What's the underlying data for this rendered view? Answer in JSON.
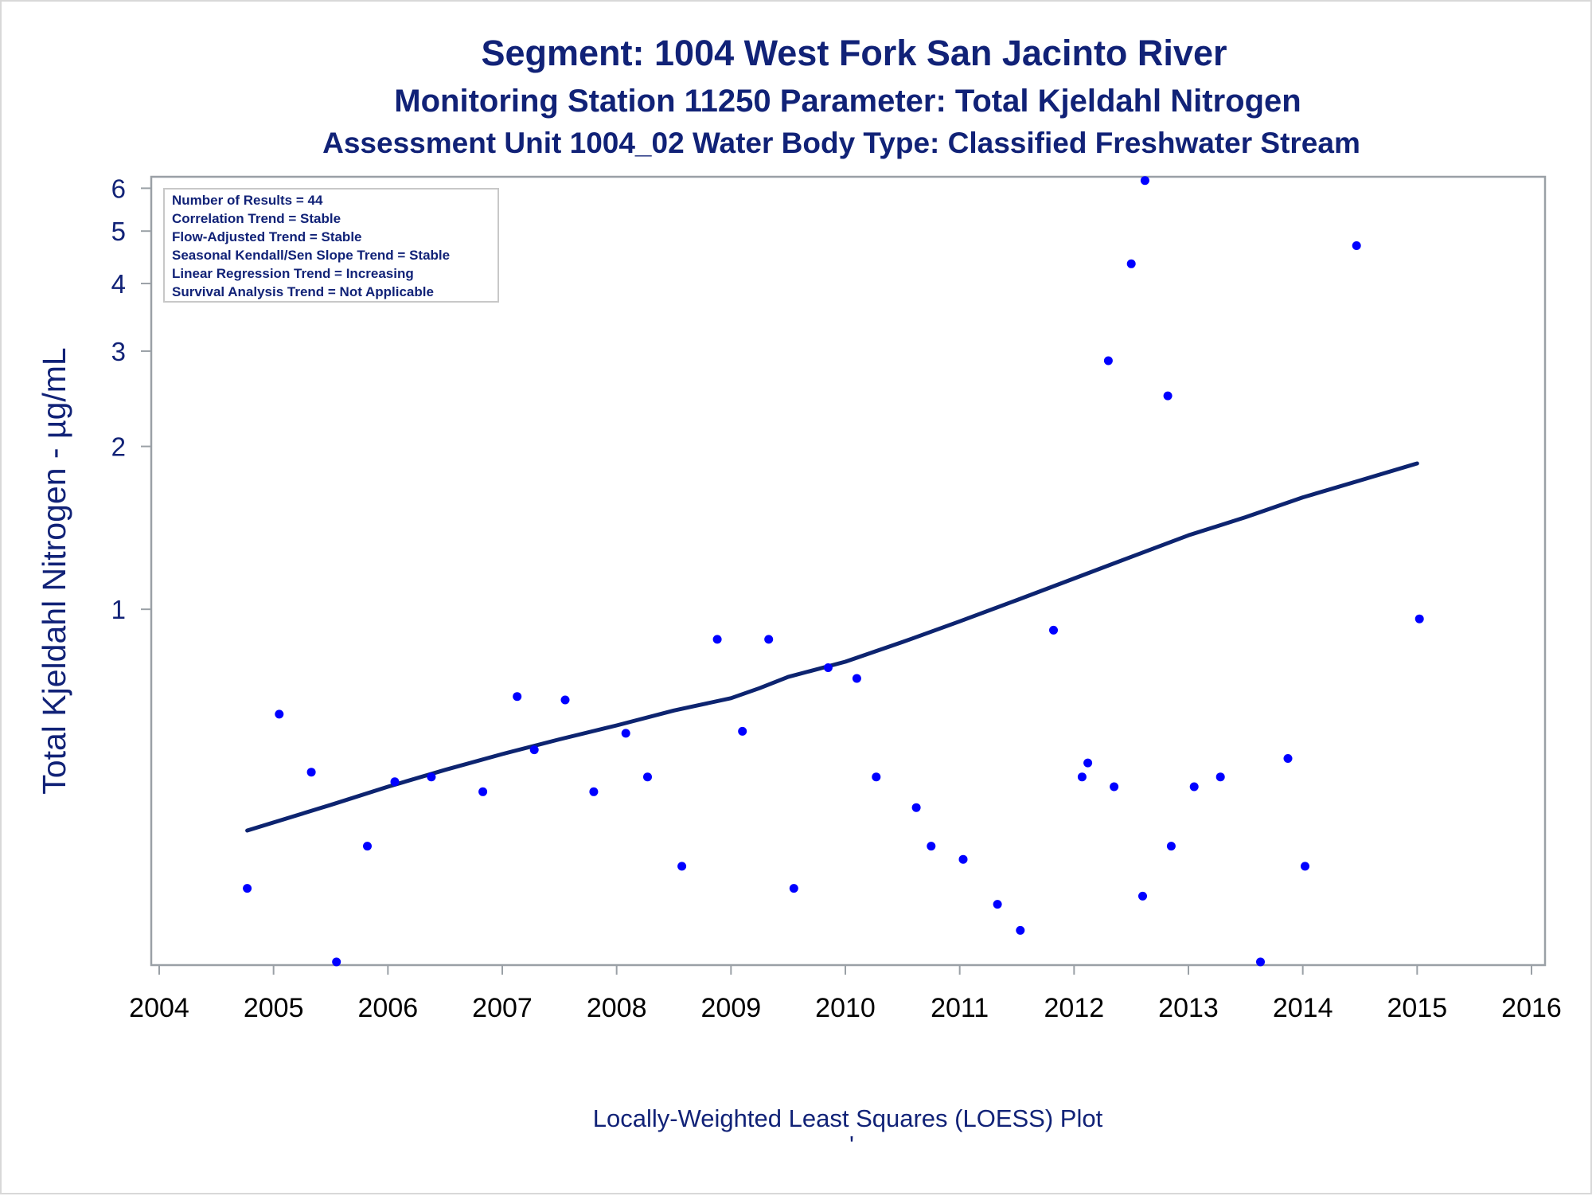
{
  "titles": {
    "line1": "Segment: 1004  West Fork San Jacinto River",
    "line2": "Monitoring Station 11250 Parameter: Total Kjeldahl Nitrogen",
    "line3": "Assessment Unit 1004_02   Water Body Type: Classified Freshwater Stream"
  },
  "footnote": "Locally-Weighted Least Squares (LOESS) Plot",
  "footnote_mark": "'",
  "stats_box": [
    "Number of Results = 44",
    "Correlation Trend = Stable",
    "Flow-Adjusted Trend = Stable",
    "Seasonal Kendall/Sen Slope Trend = Stable",
    "Linear Regression Trend = Increasing",
    "Survival Analysis Trend = Not Applicable"
  ],
  "colors": {
    "title": "#112277",
    "points": "#0000ff",
    "loess": "#0d2470",
    "axis": "#9aa0a6"
  },
  "chart_data": {
    "type": "scatter",
    "ylabel": "Total Kjeldahl Nitrogen -  µg/mL",
    "xlabel": "",
    "y_scale": "log",
    "xlim": [
      2004,
      2016
    ],
    "ylim": [
      0.22,
      6.3
    ],
    "x_ticks": [
      2004,
      2005,
      2006,
      2007,
      2008,
      2009,
      2010,
      2011,
      2012,
      2013,
      2014,
      2015,
      2016
    ],
    "y_ticks": [
      1,
      2,
      3,
      4,
      5,
      6
    ],
    "grid": false,
    "series": [
      {
        "type": "scatter",
        "points": [
          {
            "x": 2004.77,
            "y": 0.305
          },
          {
            "x": 2005.05,
            "y": 0.64
          },
          {
            "x": 2005.33,
            "y": 0.5
          },
          {
            "x": 2005.55,
            "y": 0.223
          },
          {
            "x": 2005.82,
            "y": 0.365
          },
          {
            "x": 2006.06,
            "y": 0.48
          },
          {
            "x": 2006.38,
            "y": 0.49
          },
          {
            "x": 2006.83,
            "y": 0.46
          },
          {
            "x": 2007.13,
            "y": 0.69
          },
          {
            "x": 2007.28,
            "y": 0.55
          },
          {
            "x": 2007.55,
            "y": 0.68
          },
          {
            "x": 2007.8,
            "y": 0.46
          },
          {
            "x": 2008.08,
            "y": 0.59
          },
          {
            "x": 2008.27,
            "y": 0.49
          },
          {
            "x": 2008.57,
            "y": 0.335
          },
          {
            "x": 2008.88,
            "y": 0.88
          },
          {
            "x": 2009.1,
            "y": 0.595
          },
          {
            "x": 2009.33,
            "y": 0.88
          },
          {
            "x": 2009.55,
            "y": 0.305
          },
          {
            "x": 2009.85,
            "y": 0.78
          },
          {
            "x": 2010.1,
            "y": 0.745
          },
          {
            "x": 2010.27,
            "y": 0.49
          },
          {
            "x": 2010.62,
            "y": 0.43
          },
          {
            "x": 2010.75,
            "y": 0.365
          },
          {
            "x": 2011.03,
            "y": 0.345
          },
          {
            "x": 2011.33,
            "y": 0.285
          },
          {
            "x": 2011.53,
            "y": 0.255
          },
          {
            "x": 2011.82,
            "y": 0.915
          },
          {
            "x": 2012.07,
            "y": 0.49
          },
          {
            "x": 2012.12,
            "y": 0.52
          },
          {
            "x": 2012.3,
            "y": 2.88
          },
          {
            "x": 2012.35,
            "y": 0.47
          },
          {
            "x": 2012.5,
            "y": 4.35
          },
          {
            "x": 2012.6,
            "y": 0.295
          },
          {
            "x": 2012.62,
            "y": 6.2
          },
          {
            "x": 2012.82,
            "y": 2.48
          },
          {
            "x": 2012.85,
            "y": 0.365
          },
          {
            "x": 2013.05,
            "y": 0.47
          },
          {
            "x": 2013.28,
            "y": 0.49
          },
          {
            "x": 2013.63,
            "y": 0.223
          },
          {
            "x": 2013.87,
            "y": 0.53
          },
          {
            "x": 2014.02,
            "y": 0.335
          },
          {
            "x": 2014.47,
            "y": 4.7
          },
          {
            "x": 2015.02,
            "y": 0.96
          }
        ]
      },
      {
        "type": "line",
        "points": [
          {
            "x": 2004.77,
            "y": 0.39
          },
          {
            "x": 2005.5,
            "y": 0.435
          },
          {
            "x": 2006.0,
            "y": 0.47
          },
          {
            "x": 2006.5,
            "y": 0.505
          },
          {
            "x": 2007.0,
            "y": 0.54
          },
          {
            "x": 2007.5,
            "y": 0.575
          },
          {
            "x": 2008.0,
            "y": 0.61
          },
          {
            "x": 2008.5,
            "y": 0.65
          },
          {
            "x": 2009.0,
            "y": 0.685
          },
          {
            "x": 2009.25,
            "y": 0.715
          },
          {
            "x": 2009.5,
            "y": 0.75
          },
          {
            "x": 2010.0,
            "y": 0.8
          },
          {
            "x": 2010.5,
            "y": 0.87
          },
          {
            "x": 2011.0,
            "y": 0.95
          },
          {
            "x": 2011.5,
            "y": 1.04
          },
          {
            "x": 2012.0,
            "y": 1.14
          },
          {
            "x": 2012.5,
            "y": 1.25
          },
          {
            "x": 2013.0,
            "y": 1.37
          },
          {
            "x": 2013.5,
            "y": 1.48
          },
          {
            "x": 2014.0,
            "y": 1.61
          },
          {
            "x": 2014.5,
            "y": 1.73
          },
          {
            "x": 2015.0,
            "y": 1.86
          }
        ]
      }
    ]
  }
}
